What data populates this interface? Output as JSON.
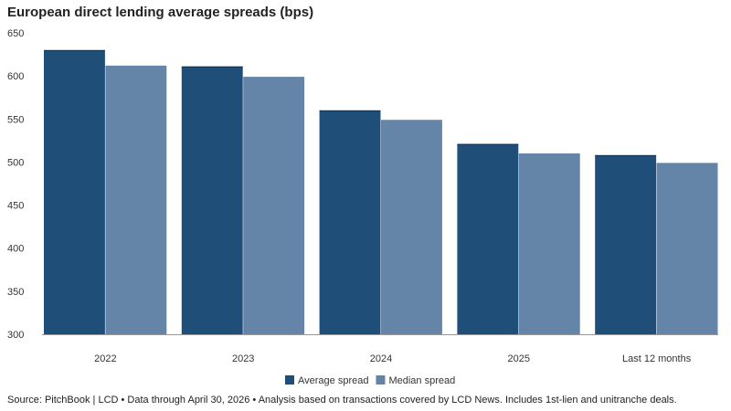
{
  "chart_data": {
    "type": "bar",
    "title": "European direct lending average spreads (bps)",
    "categories": [
      "2022",
      "2023",
      "2024",
      "2025",
      "Last 12 months"
    ],
    "series": [
      {
        "name": "Average spread",
        "values": [
          630,
          611,
          560,
          521,
          508
        ],
        "color": "#1f4e79"
      },
      {
        "name": "Median spread",
        "values": [
          612,
          599,
          549,
          510,
          499
        ],
        "color": "#6585a8"
      }
    ],
    "ylim": [
      300,
      650
    ],
    "yticks": [
      300,
      350,
      400,
      450,
      500,
      550,
      600,
      650
    ],
    "xlabel": "",
    "ylabel": "",
    "grid": false,
    "legend": "bottom-center",
    "source": "Source: PitchBook | LCD • Data through April 30, 2026 • Analysis based on transactions covered by LCD News. Includes 1st-lien and unitranche deals."
  }
}
